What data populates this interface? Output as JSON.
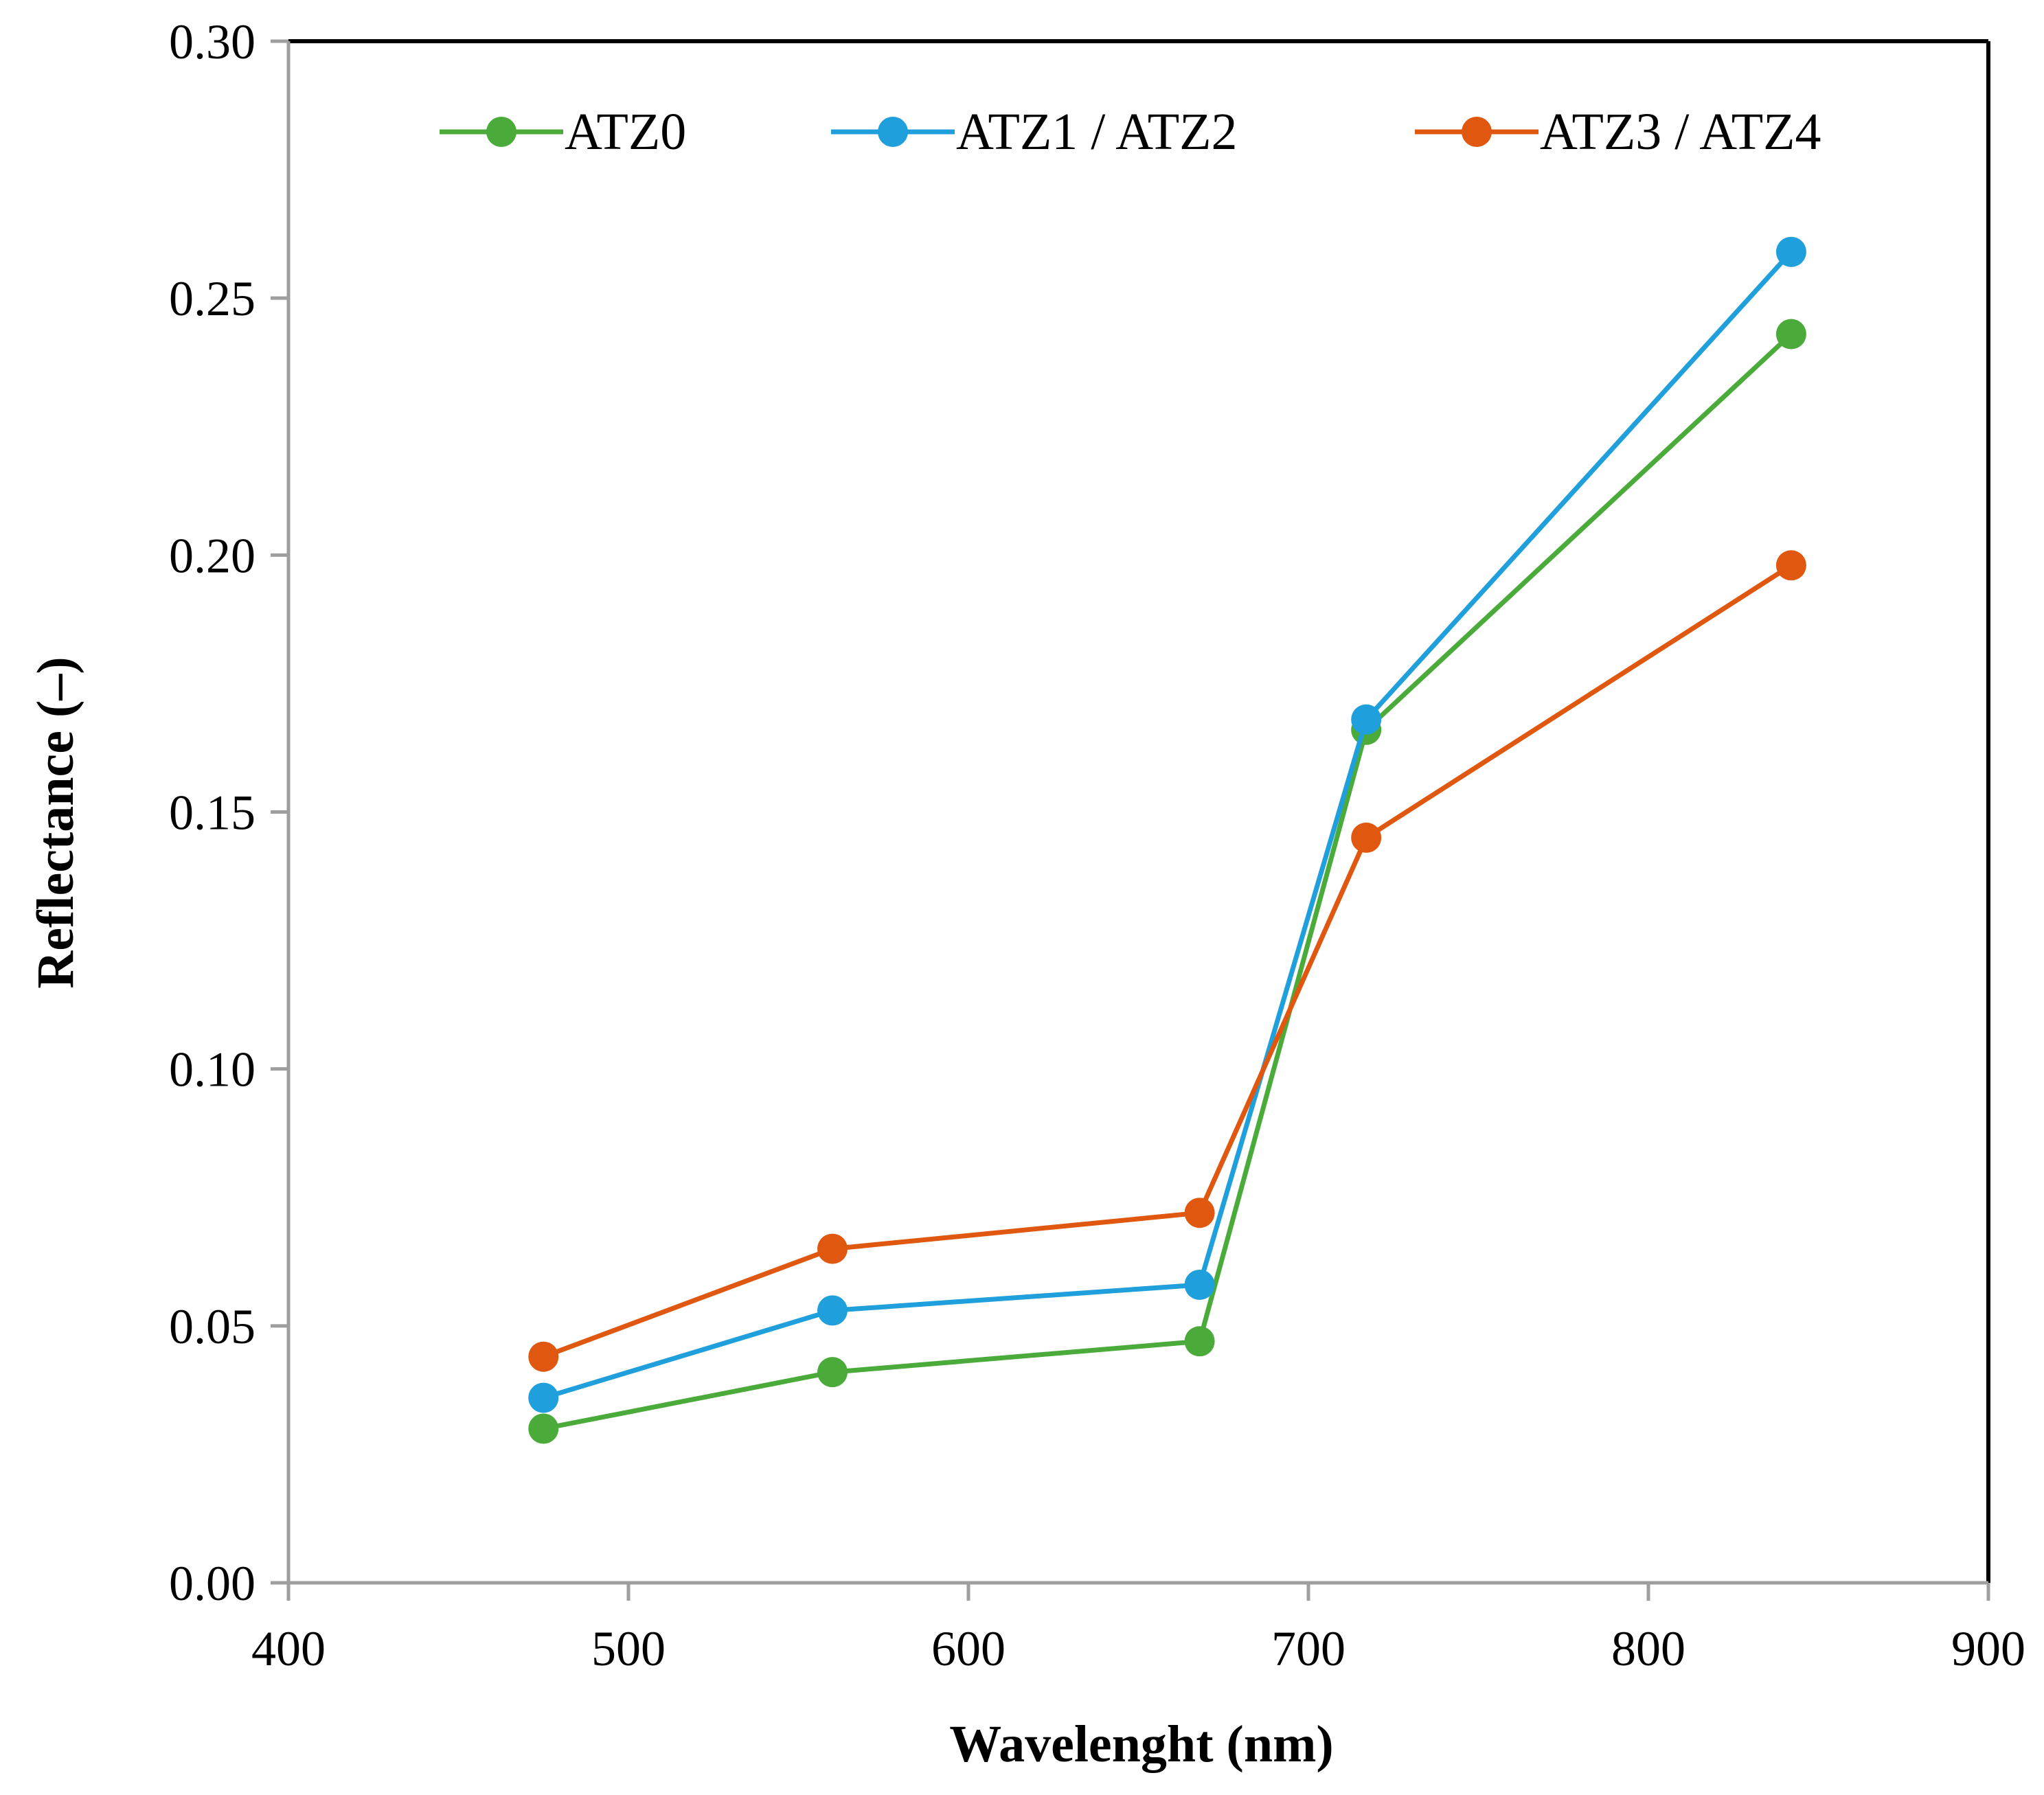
{
  "chart_data": {
    "type": "line",
    "title": "",
    "xlabel": "Wavelenght (nm)",
    "ylabel": "Reflectance (–)",
    "xlim": [
      400,
      900
    ],
    "ylim": [
      0.0,
      0.3
    ],
    "x_ticks": [
      400,
      500,
      600,
      700,
      800,
      900
    ],
    "x_tick_labels": [
      "400",
      "500",
      "600",
      "700",
      "800",
      "900"
    ],
    "y_ticks": [
      0.0,
      0.05,
      0.1,
      0.15,
      0.2,
      0.25,
      0.3
    ],
    "y_tick_labels": [
      "0.00",
      "0.05",
      "0.10",
      "0.15",
      "0.20",
      "0.25",
      "0.30"
    ],
    "grid": false,
    "legend_position": "top",
    "x": [
      475,
      560,
      668,
      717,
      842
    ],
    "series": [
      {
        "name": "ATZ0",
        "color": "#4aab3a",
        "values": [
          0.03,
          0.041,
          0.047,
          0.166,
          0.243
        ]
      },
      {
        "name": "ATZ1 / ATZ2",
        "color": "#1f9fdb",
        "values": [
          0.036,
          0.053,
          0.058,
          0.168,
          0.259
        ]
      },
      {
        "name": "ATZ3 / ATZ4",
        "color": "#e0580f",
        "values": [
          0.044,
          0.065,
          0.072,
          0.145,
          0.198
        ]
      }
    ]
  }
}
